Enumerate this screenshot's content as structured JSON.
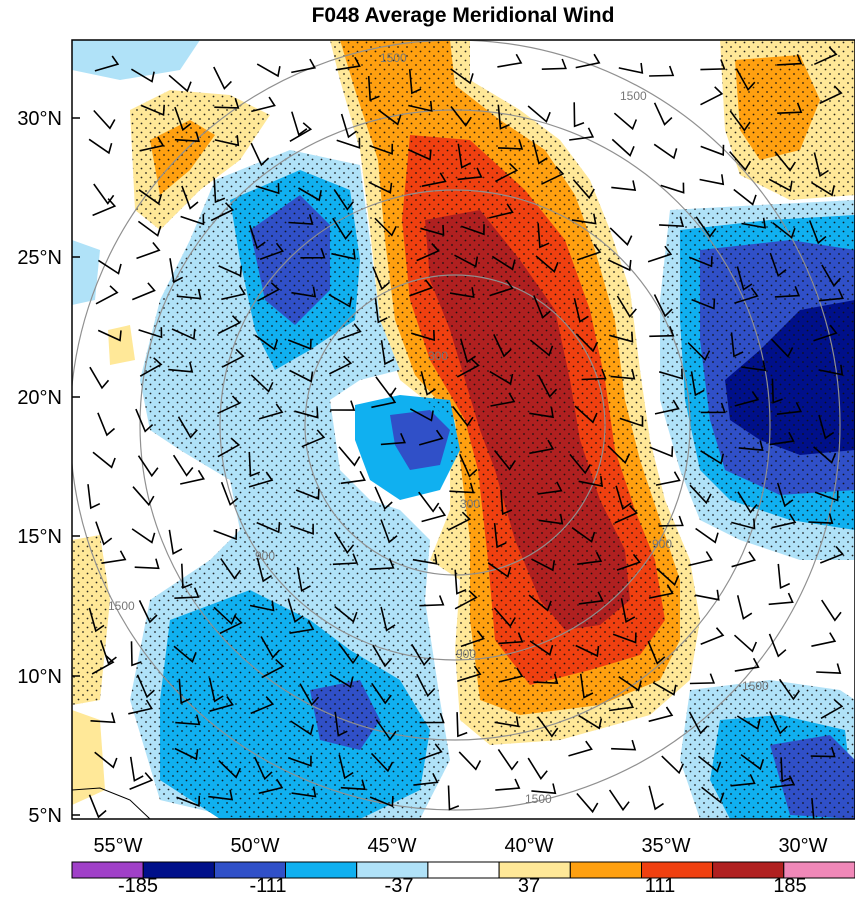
{
  "title": "F048 Average Meridional Wind",
  "lat_labels": [
    "30°N",
    "25°N",
    "20°N",
    "15°N",
    "10°N",
    "5°N"
  ],
  "lon_labels": [
    "55°W",
    "50°W",
    "45°W",
    "40°W",
    "35°W",
    "30°W"
  ],
  "colorbar": {
    "labels": [
      "-185",
      "-111",
      "-37",
      "37",
      "111",
      "185"
    ],
    "colors": [
      "#a040c8",
      "#00108a",
      "#3050c8",
      "#10b0f0",
      "#b0e2f8",
      "#ffffff",
      "#ffe898",
      "#ffa010",
      "#f04010",
      "#b02020",
      "#f088b8"
    ]
  },
  "contour_labels": {
    "outer": "1500",
    "middle": "900",
    "inner": "300"
  },
  "palette": {
    "vdark_blue": "#00108a",
    "dark_blue": "#3050c8",
    "blue": "#10b0f0",
    "light_blue": "#b0e2f8",
    "yellow": "#ffe898",
    "orange": "#ffa010",
    "red_orange": "#f04010",
    "dark_red": "#b02020",
    "range_ring": "#909090"
  }
}
